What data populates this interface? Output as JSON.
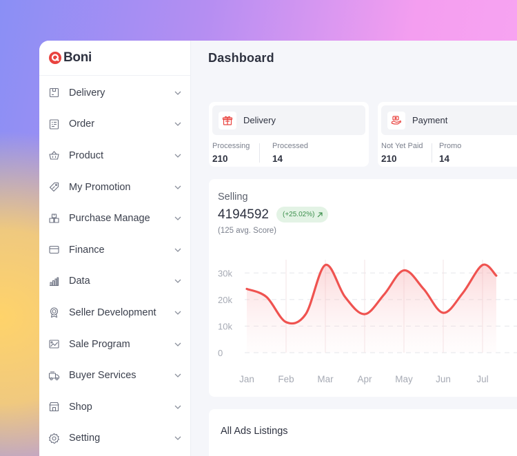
{
  "app": {
    "brand": "Boni",
    "page_title": "Dashboard",
    "accent": "#ef5350"
  },
  "sidebar": {
    "items": [
      {
        "label": "Delivery",
        "icon": "package-icon"
      },
      {
        "label": "Order",
        "icon": "receipt-icon"
      },
      {
        "label": "Product",
        "icon": "basket-icon"
      },
      {
        "label": "My Promotion",
        "icon": "tag-icon"
      },
      {
        "label": "Purchase Manage",
        "icon": "boxes-icon"
      },
      {
        "label": "Finance",
        "icon": "card-icon"
      },
      {
        "label": "Data",
        "icon": "bar-chart-icon"
      },
      {
        "label": "Seller Development",
        "icon": "award-icon"
      },
      {
        "label": "Sale Program",
        "icon": "image-chart-icon"
      },
      {
        "label": "Buyer Services",
        "icon": "truck-icon"
      },
      {
        "label": "Shop",
        "icon": "shop-icon"
      },
      {
        "label": "Setting",
        "icon": "gear-icon"
      }
    ]
  },
  "delivery_card": {
    "title": "Delivery",
    "icon": "gift-icon",
    "kpis": [
      {
        "label": "Processing",
        "value": "210"
      },
      {
        "label": "Processed",
        "value": "14"
      }
    ]
  },
  "payment_card": {
    "title": "Payment",
    "icon": "money-icon",
    "kpis": [
      {
        "label": "Not Yet Paid",
        "value": "210"
      },
      {
        "label": "Promo",
        "value": "14"
      }
    ]
  },
  "selling": {
    "label": "Selling",
    "value": "4194592",
    "badge": "(+25.02%)",
    "badge_icon": "arrow-up-right-icon",
    "subtitle": "(125 avg. Score)"
  },
  "chart_data": {
    "type": "line",
    "categories": [
      "Jan",
      "Feb",
      "Mar",
      "Apr",
      "May",
      "Jun",
      "Jul"
    ],
    "x": [
      0,
      0.5,
      1,
      1.5,
      2,
      2.5,
      3,
      3.5,
      4,
      4.5,
      5,
      5.5,
      6,
      6.35
    ],
    "y": [
      24000,
      21000,
      11500,
      14500,
      33000,
      21000,
      14500,
      22000,
      31000,
      24000,
      15000,
      22500,
      33000,
      29000
    ],
    "yticks": [
      "0",
      "10k",
      "20k",
      "30k"
    ],
    "ylim": [
      0,
      35000
    ],
    "grid": true,
    "line_color": "#ef5350"
  },
  "ads": {
    "title": "All Ads Listings"
  }
}
